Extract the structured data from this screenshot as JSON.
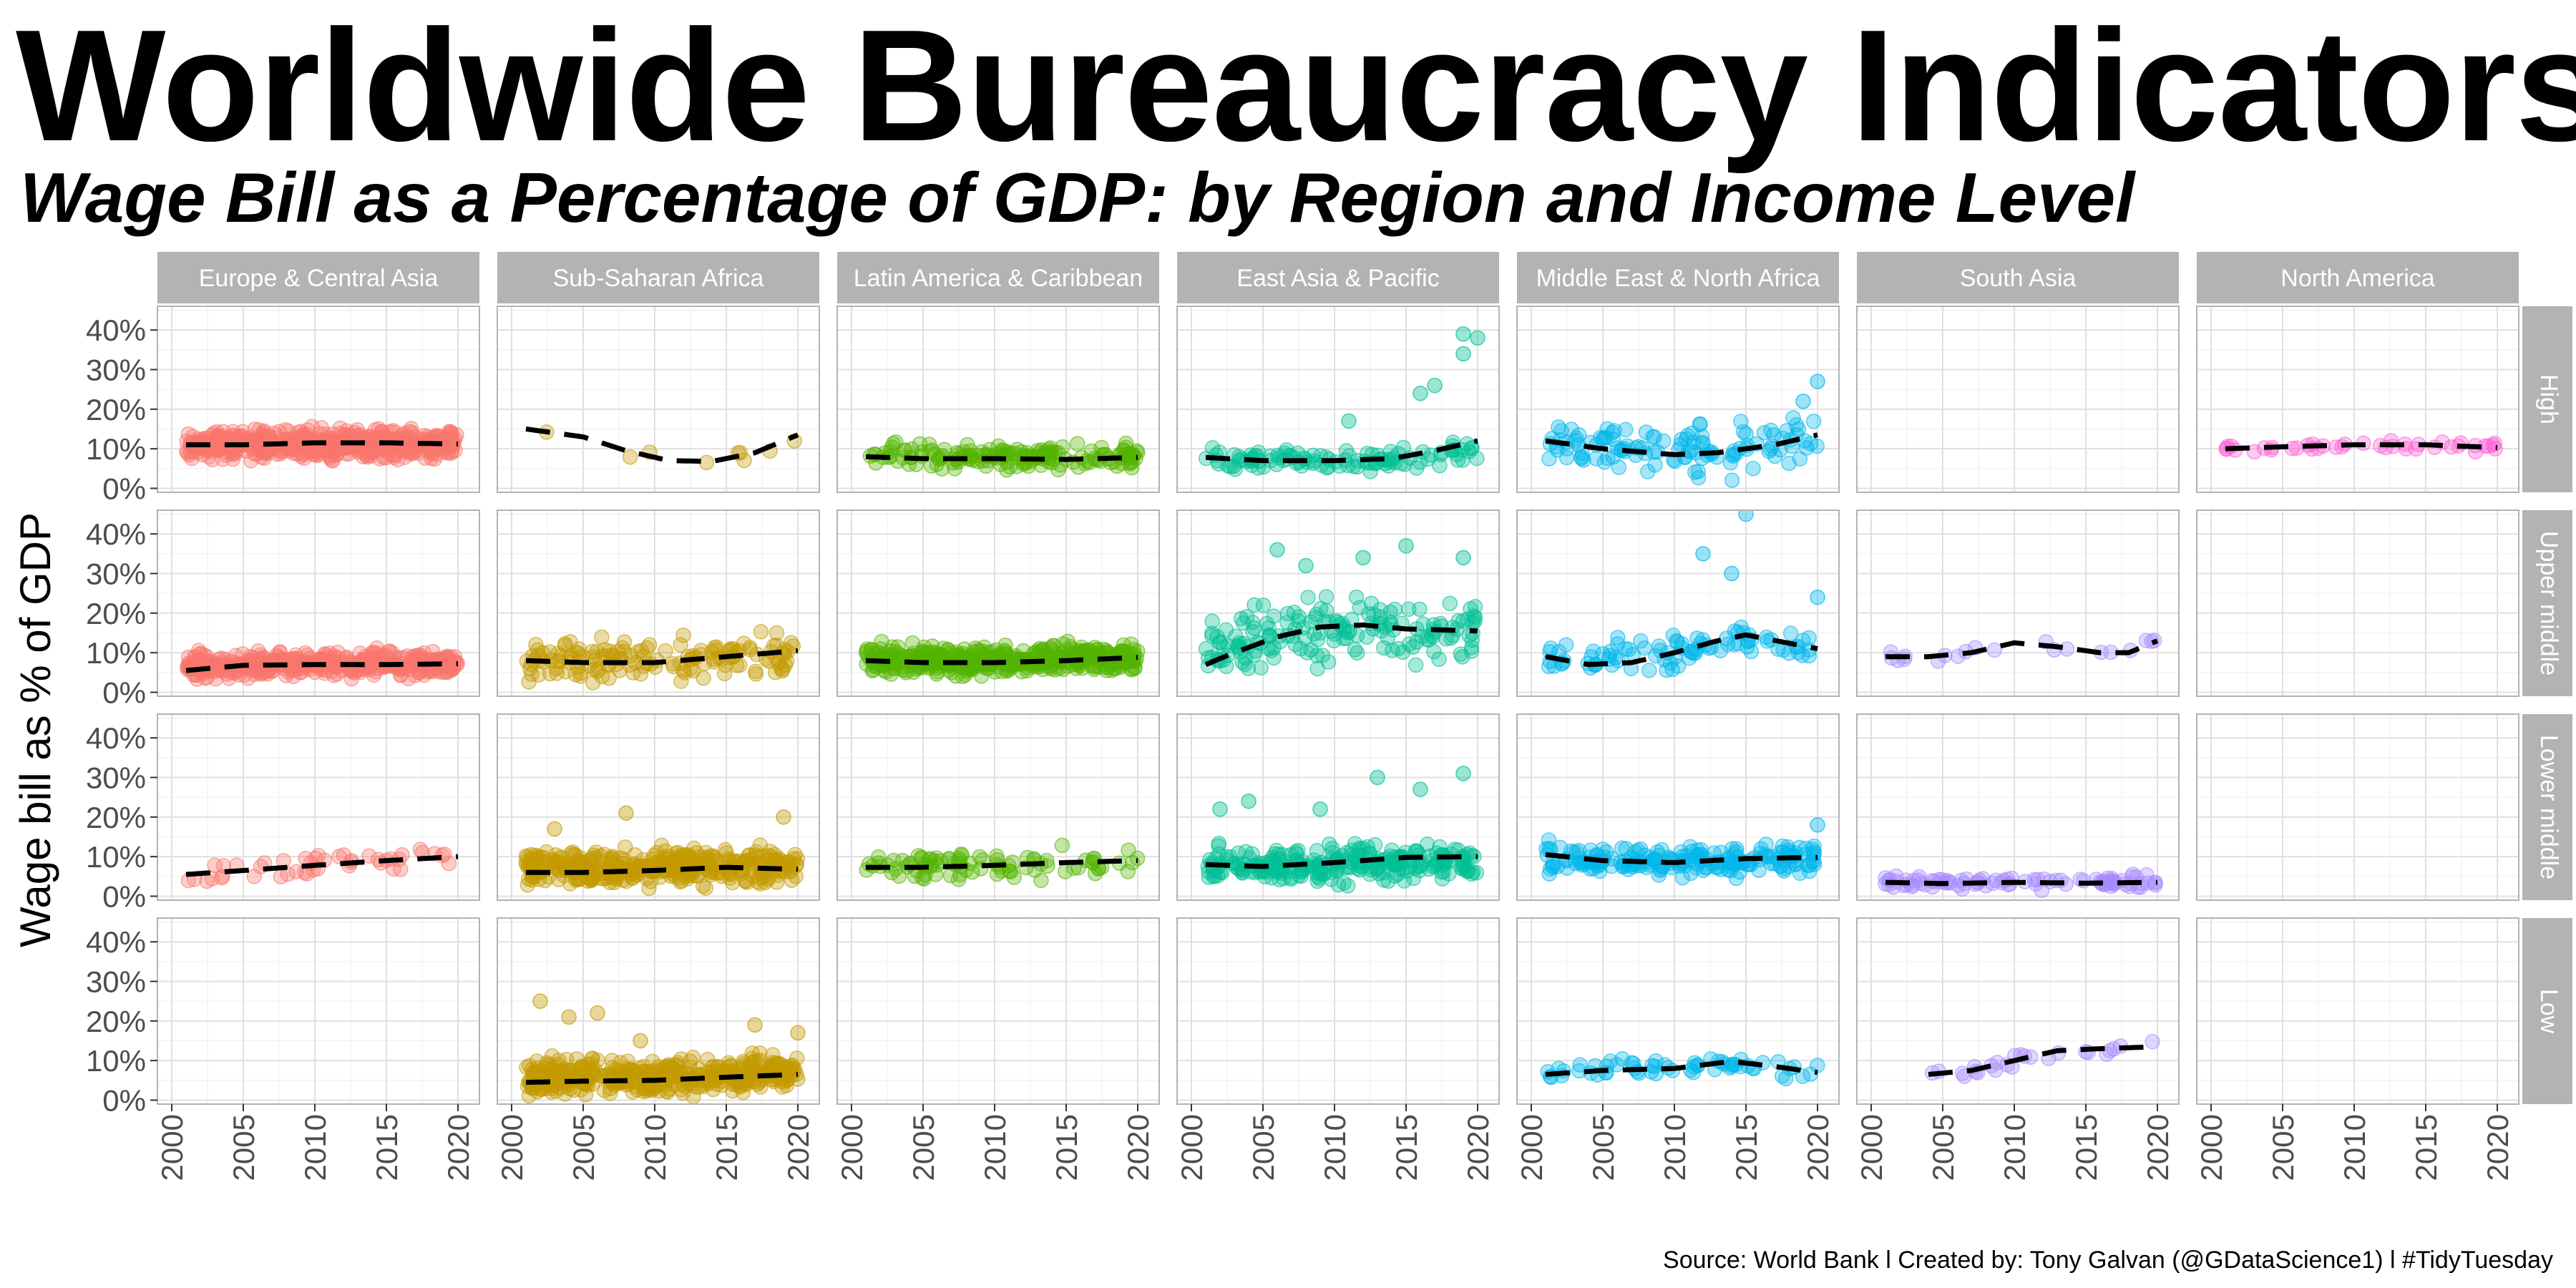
{
  "title": "Worldwide Bureaucracy Indicators",
  "subtitle": "Wage Bill as a Percentage of GDP: by Region and Income Level",
  "caption": "Source: World Bank  l  Created by: Tony Galvan (@GDataScience1)  l  #TidyTuesday",
  "chart_data": {
    "type": "scatter",
    "title": "Worldwide Bureaucracy Indicators",
    "subtitle": "Wage Bill as a Percentage of GDP: by Region and Income Level",
    "xlabel": "",
    "ylabel": "Wage bill as % of GDP",
    "xlim": [
      1999,
      2021.5
    ],
    "ylim": [
      -1,
      46
    ],
    "x_ticks": [
      2000,
      2005,
      2010,
      2015,
      2020
    ],
    "y_ticks": [
      0,
      10,
      20,
      30,
      40
    ],
    "y_tick_labels": [
      "0%",
      "10%",
      "20%",
      "30%",
      "40%"
    ],
    "grid": true,
    "trend_style": "black dashed smoothed line",
    "regions": [
      "Europe & Central Asia",
      "Sub-Saharan Africa",
      "Latin America & Caribbean",
      "East Asia & Pacific",
      "Middle East & North Africa",
      "South Asia",
      "North America"
    ],
    "income_levels": [
      "High",
      "Upper middle",
      "Lower middle",
      "Low"
    ],
    "region_colors": {
      "Europe & Central Asia": "#F8766D",
      "Sub-Saharan Africa": "#C49A00",
      "Latin America & Caribbean": "#53B400",
      "East Asia & Pacific": "#00C094",
      "Middle East & North Africa": "#00B6EB",
      "South Asia": "#A58AFF",
      "North America": "#FB61D7"
    },
    "panels": [
      {
        "region": "Europe & Central Asia",
        "income": "High",
        "n": 560,
        "trend": [
          [
            2001,
            11
          ],
          [
            2005,
            11
          ],
          [
            2010,
            11.5
          ],
          [
            2015,
            11.5
          ],
          [
            2020,
            11.2
          ]
        ],
        "spread": [
          6,
          16
        ],
        "outliers": []
      },
      {
        "region": "Sub-Saharan Africa",
        "income": "High",
        "n": 9,
        "trend": [
          [
            2001,
            15
          ],
          [
            2005,
            13
          ],
          [
            2008,
            9.5
          ],
          [
            2011,
            7
          ],
          [
            2014,
            6.8
          ],
          [
            2017,
            9
          ],
          [
            2020,
            13.5
          ]
        ],
        "spread": [
          -1.5,
          1.5
        ],
        "outliers": []
      },
      {
        "region": "Latin America & Caribbean",
        "income": "High",
        "n": 170,
        "trend": [
          [
            2001,
            8
          ],
          [
            2005,
            7.5
          ],
          [
            2010,
            7.5
          ],
          [
            2015,
            7.3
          ],
          [
            2020,
            7.8
          ]
        ],
        "spread": [
          4,
          13
        ],
        "outliers": []
      },
      {
        "region": "East Asia & Pacific",
        "income": "High",
        "n": 110,
        "trend": [
          [
            2001,
            7.8
          ],
          [
            2005,
            7
          ],
          [
            2010,
            7
          ],
          [
            2014,
            7.5
          ],
          [
            2017,
            9.5
          ],
          [
            2020,
            12
          ]
        ],
        "spread": [
          3,
          11
        ],
        "outliers": [
          [
            2016,
            24
          ],
          [
            2017,
            26
          ],
          [
            2019,
            39
          ],
          [
            2020,
            38
          ],
          [
            2019,
            34
          ],
          [
            2011,
            17
          ]
        ]
      },
      {
        "region": "Middle East & North Africa",
        "income": "High",
        "n": 120,
        "trend": [
          [
            2001,
            12
          ],
          [
            2005,
            10
          ],
          [
            2010,
            8.5
          ],
          [
            2013,
            9
          ],
          [
            2017,
            11
          ],
          [
            2020,
            13.5
          ]
        ],
        "spread": [
          2,
          20
        ],
        "outliers": [
          [
            2020,
            27
          ],
          [
            2019,
            22
          ]
        ]
      },
      {
        "region": "North America",
        "income": "High",
        "n": 40,
        "trend": [
          [
            2001,
            10
          ],
          [
            2005,
            10.5
          ],
          [
            2010,
            11
          ],
          [
            2015,
            11
          ],
          [
            2020,
            10.3
          ]
        ],
        "spread": [
          9,
          12
        ],
        "outliers": []
      },
      {
        "region": "Europe & Central Asia",
        "income": "Upper middle",
        "n": 380,
        "trend": [
          [
            2001,
            5.5
          ],
          [
            2005,
            6.8
          ],
          [
            2010,
            7
          ],
          [
            2015,
            7
          ],
          [
            2020,
            7.2
          ]
        ],
        "spread": [
          3,
          12
        ],
        "outliers": []
      },
      {
        "region": "Sub-Saharan Africa",
        "income": "Upper middle",
        "n": 150,
        "trend": [
          [
            2001,
            8
          ],
          [
            2005,
            7.5
          ],
          [
            2010,
            7.5
          ],
          [
            2015,
            9
          ],
          [
            2020,
            10.5
          ]
        ],
        "spread": [
          1,
          16
        ],
        "outliers": []
      },
      {
        "region": "Latin America & Caribbean",
        "income": "Upper middle",
        "n": 450,
        "trend": [
          [
            2001,
            8
          ],
          [
            2005,
            7.5
          ],
          [
            2010,
            7.5
          ],
          [
            2015,
            8
          ],
          [
            2020,
            8.8
          ]
        ],
        "spread": [
          4,
          14
        ],
        "outliers": []
      },
      {
        "region": "East Asia & Pacific",
        "income": "Upper middle",
        "n": 170,
        "trend": [
          [
            2001,
            7
          ],
          [
            2003,
            10
          ],
          [
            2006,
            14
          ],
          [
            2009,
            16.5
          ],
          [
            2012,
            17
          ],
          [
            2015,
            16
          ],
          [
            2020,
            15.5
          ]
        ],
        "spread": [
          4,
          26
        ],
        "outliers": [
          [
            2006,
            36
          ],
          [
            2008,
            32
          ],
          [
            2012,
            34
          ],
          [
            2015,
            37
          ],
          [
            2019,
            34
          ]
        ]
      },
      {
        "region": "Middle East & North Africa",
        "income": "Upper middle",
        "n": 90,
        "trend": [
          [
            2001,
            9
          ],
          [
            2004,
            7
          ],
          [
            2007,
            7.5
          ],
          [
            2010,
            10
          ],
          [
            2013,
            13
          ],
          [
            2015,
            14.5
          ],
          [
            2020,
            11
          ]
        ],
        "spread": [
          4,
          17
        ],
        "outliers": [
          [
            2015,
            45
          ],
          [
            2012,
            35
          ],
          [
            2014,
            30
          ],
          [
            2020,
            24
          ]
        ]
      },
      {
        "region": "South Asia",
        "income": "Upper middle",
        "n": 20,
        "trend": [
          [
            2001,
            9
          ],
          [
            2004,
            9
          ],
          [
            2007,
            10
          ],
          [
            2010,
            12.5
          ],
          [
            2013,
            11.5
          ],
          [
            2016,
            10
          ],
          [
            2018,
            10
          ],
          [
            2020,
            13
          ]
        ],
        "spread": [
          -1.5,
          1.5
        ],
        "outliers": []
      },
      {
        "region": "Europe & Central Asia",
        "income": "Lower middle",
        "n": 45,
        "trend": [
          [
            2001,
            5.5
          ],
          [
            2005,
            6.5
          ],
          [
            2010,
            7.8
          ],
          [
            2015,
            9
          ],
          [
            2020,
            10
          ]
        ],
        "spread": [
          -2.5,
          2.5
        ],
        "outliers": []
      },
      {
        "region": "Sub-Saharan Africa",
        "income": "Lower middle",
        "n": 380,
        "trend": [
          [
            2001,
            6
          ],
          [
            2005,
            6
          ],
          [
            2010,
            6.5
          ],
          [
            2015,
            7.3
          ],
          [
            2020,
            6.8
          ]
        ],
        "spread": [
          2,
          15
        ],
        "outliers": [
          [
            2008,
            21
          ],
          [
            2019,
            20
          ],
          [
            2003,
            17
          ]
        ]
      },
      {
        "region": "Latin America & Caribbean",
        "income": "Lower middle",
        "n": 90,
        "trend": [
          [
            2001,
            7.3
          ],
          [
            2005,
            7.3
          ],
          [
            2010,
            7.8
          ],
          [
            2015,
            8.5
          ],
          [
            2020,
            9
          ]
        ],
        "spread": [
          2,
          13
        ],
        "outliers": []
      },
      {
        "region": "East Asia & Pacific",
        "income": "Lower middle",
        "n": 260,
        "trend": [
          [
            2001,
            8
          ],
          [
            2005,
            7.5
          ],
          [
            2010,
            8.5
          ],
          [
            2015,
            9.8
          ],
          [
            2020,
            10
          ]
        ],
        "spread": [
          1,
          14
        ],
        "outliers": [
          [
            2002,
            22
          ],
          [
            2004,
            24
          ],
          [
            2009,
            22
          ],
          [
            2013,
            30
          ],
          [
            2016,
            27
          ],
          [
            2019,
            31
          ]
        ]
      },
      {
        "region": "Middle East & North Africa",
        "income": "Lower middle",
        "n": 200,
        "trend": [
          [
            2001,
            10.5
          ],
          [
            2005,
            9
          ],
          [
            2010,
            8.5
          ],
          [
            2015,
            9.5
          ],
          [
            2020,
            9.8
          ]
        ],
        "spread": [
          4,
          14
        ],
        "outliers": [
          [
            2020,
            18
          ]
        ]
      },
      {
        "region": "South Asia",
        "income": "Lower middle",
        "n": 90,
        "trend": [
          [
            2001,
            3.5
          ],
          [
            2005,
            3.2
          ],
          [
            2010,
            3.5
          ],
          [
            2015,
            3.3
          ],
          [
            2020,
            3.5
          ]
        ],
        "spread": [
          1.5,
          6
        ],
        "outliers": []
      },
      {
        "region": "Sub-Saharan Africa",
        "income": "Low",
        "n": 420,
        "trend": [
          [
            2001,
            4.5
          ],
          [
            2005,
            4.8
          ],
          [
            2010,
            5
          ],
          [
            2015,
            5.8
          ],
          [
            2020,
            6.5
          ]
        ],
        "spread": [
          1,
          14
        ],
        "outliers": [
          [
            2002,
            25
          ],
          [
            2004,
            21
          ],
          [
            2006,
            22
          ],
          [
            2009,
            15
          ],
          [
            2017,
            19
          ],
          [
            2020,
            17
          ]
        ]
      },
      {
        "region": "Middle East & North Africa",
        "income": "Low",
        "n": 60,
        "trend": [
          [
            2001,
            6.5
          ],
          [
            2005,
            7.5
          ],
          [
            2010,
            8
          ],
          [
            2014,
            9.8
          ],
          [
            2017,
            8.5
          ],
          [
            2020,
            7
          ]
        ],
        "spread": [
          4,
          12
        ],
        "outliers": []
      },
      {
        "region": "South Asia",
        "income": "Low",
        "n": 25,
        "trend": [
          [
            2004,
            6.5
          ],
          [
            2007,
            7.5
          ],
          [
            2010,
            10
          ],
          [
            2013,
            12.5
          ],
          [
            2016,
            13
          ],
          [
            2020,
            13.5
          ]
        ],
        "spread": [
          -1.5,
          1.5
        ],
        "outliers": []
      }
    ]
  }
}
